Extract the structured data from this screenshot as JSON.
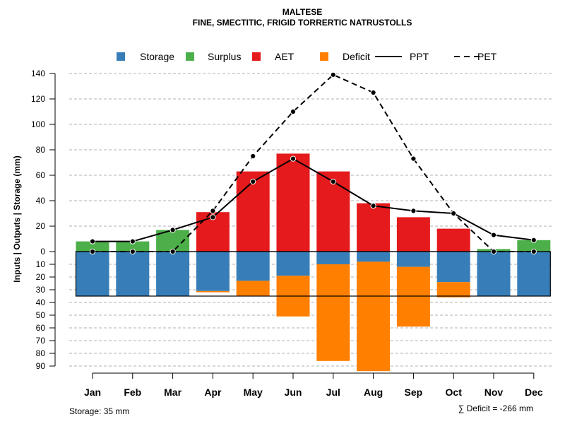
{
  "chart_data": {
    "type": "bar",
    "title": "MALTESE",
    "subtitle": "FINE, SMECTITIC, FRIGID TORRERTIC NATRUSTOLLS",
    "ylabel": "Inputs | Outputs | Storage    (mm)",
    "categories": [
      "Jan",
      "Feb",
      "Mar",
      "Apr",
      "May",
      "Jun",
      "Jul",
      "Aug",
      "Sep",
      "Oct",
      "Nov",
      "Dec"
    ],
    "upper_ylim": [
      0,
      140
    ],
    "upper_ticks": [
      "0",
      "20",
      "40",
      "60",
      "80",
      "100",
      "120",
      "140"
    ],
    "lower_ylim": [
      0,
      90
    ],
    "lower_ticks": [
      "10",
      "20",
      "30",
      "40",
      "50",
      "60",
      "70",
      "80",
      "90"
    ],
    "legend": [
      {
        "label": "Storage",
        "kind": "box",
        "color": "#377eb8"
      },
      {
        "label": "Surplus",
        "kind": "box",
        "color": "#4daf4a"
      },
      {
        "label": "AET",
        "kind": "box",
        "color": "#e41a1c"
      },
      {
        "label": "Deficit",
        "kind": "box",
        "color": "#ff7f00"
      },
      {
        "label": "PPT",
        "kind": "solid",
        "color": "#000000"
      },
      {
        "label": "PET",
        "kind": "dashed",
        "color": "#000000"
      }
    ],
    "series": [
      {
        "name": "Surplus",
        "values": [
          8,
          8,
          17,
          0,
          0,
          0,
          0,
          0,
          0,
          0,
          2,
          9
        ]
      },
      {
        "name": "AET",
        "values": [
          0,
          0,
          0,
          31,
          63,
          77,
          63,
          38,
          27,
          18,
          0,
          0
        ]
      },
      {
        "name": "Storage",
        "values": [
          35,
          35,
          35,
          31,
          23,
          19,
          10,
          8,
          12,
          24,
          35,
          35
        ]
      },
      {
        "name": "Deficit",
        "values": [
          0,
          0,
          0,
          1,
          12,
          32,
          76,
          86,
          47,
          12,
          0,
          0
        ]
      },
      {
        "name": "PPT",
        "values": [
          8,
          8,
          17,
          27,
          55,
          73,
          55,
          36,
          32,
          30,
          13,
          9
        ]
      },
      {
        "name": "PET",
        "values": [
          0,
          0,
          0,
          32,
          75,
          110,
          139,
          125,
          73,
          30,
          0,
          0
        ]
      }
    ],
    "storage_capacity": 35,
    "storage_label": "Storage: 35 mm",
    "deficit_label": "∑ Deficit = -266 mm",
    "colors": {
      "storage": "#377eb8",
      "surplus": "#4daf4a",
      "aet": "#e41a1c",
      "deficit": "#ff7f00",
      "line": "#000000"
    }
  }
}
